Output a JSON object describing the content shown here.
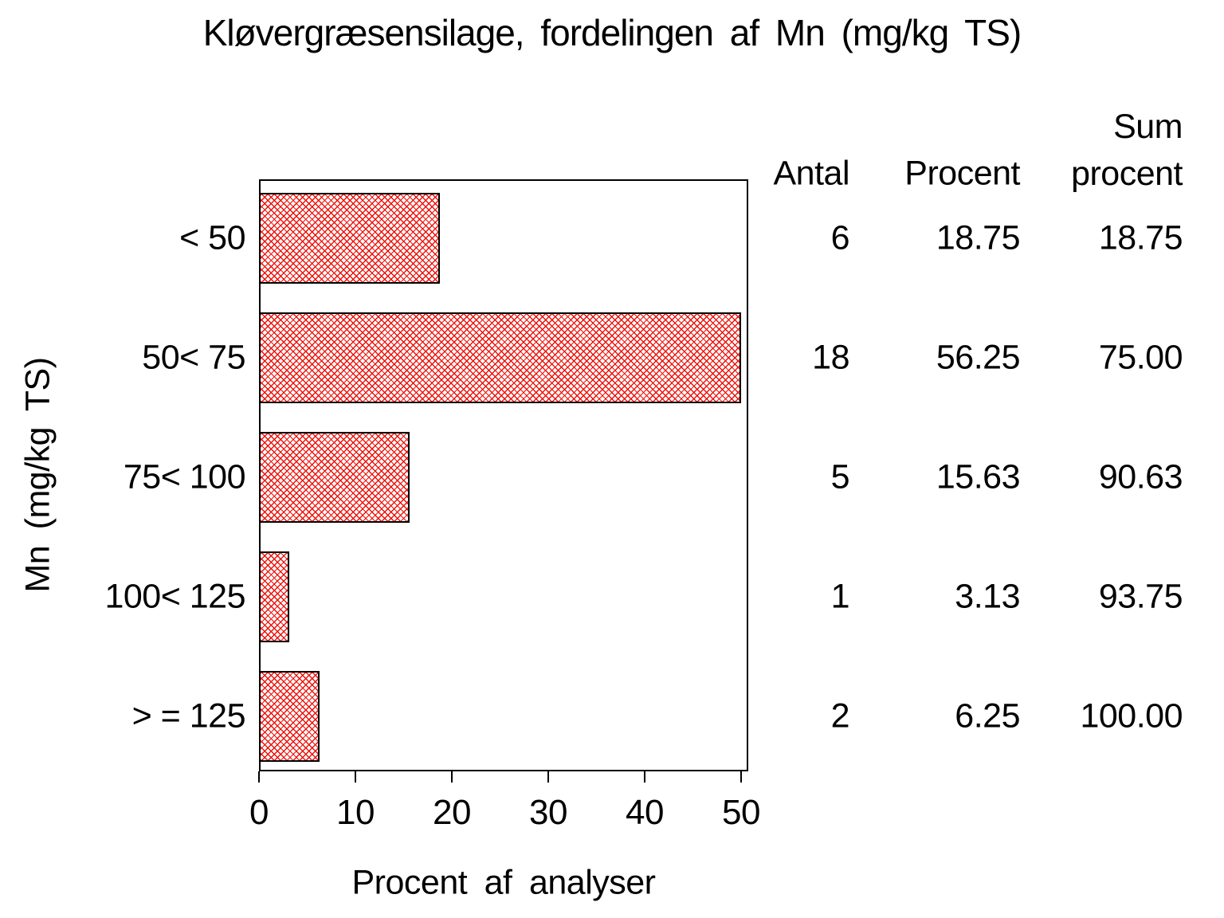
{
  "title": "Kløvergræsensilage, fordelingen af Mn (mg/kg TS)",
  "chart_data": {
    "type": "bar",
    "orientation": "horizontal",
    "title": "Kløvergræsensilage, fordelingen af Mn (mg/kg TS)",
    "xlabel": "Procent af analyser",
    "ylabel": "Mn (mg/kg TS)",
    "categories": [
      "< 50",
      "50< 75",
      "75< 100",
      "100< 125",
      "> = 125"
    ],
    "series": [
      {
        "name": "Antal",
        "values": [
          6,
          18,
          5,
          1,
          2
        ]
      },
      {
        "name": "Procent",
        "values": [
          18.75,
          56.25,
          15.63,
          3.13,
          6.25
        ]
      },
      {
        "name": "Sum procent",
        "values": [
          18.75,
          75.0,
          90.63,
          93.75,
          100.0
        ]
      }
    ],
    "xlim": [
      0,
      50
    ],
    "xticks": [
      0,
      10,
      20,
      30,
      40,
      50
    ],
    "grid": "off",
    "legend": "none",
    "bar_style": "crosshatch",
    "hatch_color": "#ee1009",
    "bar_border_color": "#000000",
    "background_color": "#ffffff",
    "text_color": "#000000"
  },
  "table": {
    "headers": [
      "Antal",
      "Procent",
      "Sum procent"
    ],
    "rows": [
      {
        "antal": "6",
        "procent": "18.75",
        "sum": "18.75"
      },
      {
        "antal": "18",
        "procent": "56.25",
        "sum": "75.00"
      },
      {
        "antal": "5",
        "procent": "15.63",
        "sum": "90.63"
      },
      {
        "antal": "1",
        "procent": "3.13",
        "sum": "93.75"
      },
      {
        "antal": "2",
        "procent": "6.25",
        "sum": "100.00"
      }
    ]
  }
}
